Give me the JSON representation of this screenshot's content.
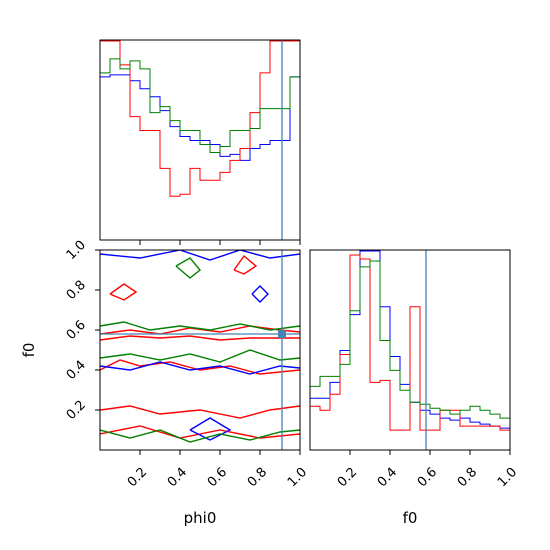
{
  "colors": {
    "series1": "#0000ff",
    "series2": "#ff0000",
    "series3": "#008000",
    "truth": "#4682b4"
  },
  "chart_data": [
    {
      "panel": "phi0-marginal",
      "type": "step-histogram",
      "xlim": [
        0,
        1
      ],
      "ylim": [
        0,
        1
      ],
      "bins": [
        0,
        0.05,
        0.1,
        0.15,
        0.2,
        0.25,
        0.3,
        0.35,
        0.4,
        0.45,
        0.5,
        0.55,
        0.6,
        0.65,
        0.7,
        0.75,
        0.8,
        0.85,
        0.9,
        0.95,
        1.0
      ],
      "series": [
        {
          "color": "#0000ff",
          "values": [
            0.82,
            0.83,
            0.83,
            0.8,
            0.76,
            0.72,
            0.65,
            0.57,
            0.52,
            0.5,
            0.5,
            0.48,
            0.42,
            0.43,
            0.4,
            0.46,
            0.48,
            0.5,
            0.5,
            0.82
          ]
        },
        {
          "color": "#ff0000",
          "values": [
            1.0,
            1.0,
            0.88,
            0.62,
            0.55,
            0.55,
            0.36,
            0.22,
            0.23,
            0.36,
            0.3,
            0.3,
            0.34,
            0.4,
            0.46,
            0.64,
            0.84,
            1.0,
            1.0,
            1.0
          ]
        },
        {
          "color": "#008000",
          "values": [
            0.84,
            0.91,
            0.86,
            0.9,
            0.86,
            0.64,
            0.67,
            0.6,
            0.55,
            0.55,
            0.48,
            0.44,
            0.47,
            0.55,
            0.55,
            0.56,
            0.66,
            0.66,
            0.66,
            0.82
          ]
        }
      ],
      "truth_x": 0.91
    },
    {
      "panel": "phi0-f0-contour",
      "type": "contour",
      "xlabel": "phi0",
      "ylabel": "f0",
      "xlim": [
        0,
        1
      ],
      "ylim": [
        0,
        1
      ],
      "xticks": [
        "0.2",
        "0.4",
        "0.6",
        "0.8",
        "1.0"
      ],
      "yticks": [
        "0.2",
        "0.4",
        "0.6",
        "0.8",
        "1.0"
      ],
      "truth_x": 0.91,
      "truth_y": 0.58,
      "contours": [
        {
          "color": "#ff0000",
          "points": [
            [
              0.0,
              0.58
            ],
            [
              0.15,
              0.6
            ],
            [
              0.3,
              0.58
            ],
            [
              0.45,
              0.61
            ],
            [
              0.6,
              0.59
            ],
            [
              0.75,
              0.62
            ],
            [
              0.9,
              0.6
            ],
            [
              1.0,
              0.59
            ]
          ]
        },
        {
          "color": "#ff0000",
          "points": [
            [
              0.0,
              0.55
            ],
            [
              0.15,
              0.57
            ],
            [
              0.3,
              0.56
            ],
            [
              0.45,
              0.57
            ],
            [
              0.6,
              0.55
            ],
            [
              0.75,
              0.56
            ],
            [
              0.9,
              0.56
            ],
            [
              1.0,
              0.56
            ]
          ]
        },
        {
          "color": "#ff0000",
          "points": [
            [
              0.0,
              0.4
            ],
            [
              0.1,
              0.45
            ],
            [
              0.2,
              0.42
            ],
            [
              0.35,
              0.44
            ],
            [
              0.5,
              0.4
            ],
            [
              0.65,
              0.42
            ],
            [
              0.8,
              0.38
            ],
            [
              1.0,
              0.4
            ]
          ]
        },
        {
          "color": "#ff0000",
          "points": [
            [
              0.0,
              0.2
            ],
            [
              0.15,
              0.22
            ],
            [
              0.3,
              0.18
            ],
            [
              0.5,
              0.2
            ],
            [
              0.7,
              0.16
            ],
            [
              0.85,
              0.2
            ],
            [
              1.0,
              0.22
            ]
          ]
        },
        {
          "color": "#ff0000",
          "points": [
            [
              0.0,
              0.08
            ],
            [
              0.2,
              0.12
            ],
            [
              0.4,
              0.06
            ],
            [
              0.6,
              0.1
            ],
            [
              0.8,
              0.06
            ],
            [
              1.0,
              0.08
            ]
          ]
        },
        {
          "color": "#ff0000",
          "points": [
            [
              0.05,
              0.78
            ],
            [
              0.12,
              0.83
            ],
            [
              0.18,
              0.79
            ],
            [
              0.12,
              0.75
            ],
            [
              0.05,
              0.78
            ]
          ]
        },
        {
          "color": "#ff0000",
          "points": [
            [
              0.67,
              0.9
            ],
            [
              0.72,
              0.97
            ],
            [
              0.78,
              0.92
            ],
            [
              0.72,
              0.88
            ],
            [
              0.67,
              0.9
            ]
          ]
        },
        {
          "color": "#0000ff",
          "points": [
            [
              0.0,
              0.42
            ],
            [
              0.15,
              0.4
            ],
            [
              0.3,
              0.44
            ],
            [
              0.45,
              0.4
            ],
            [
              0.6,
              0.42
            ],
            [
              0.75,
              0.38
            ],
            [
              0.9,
              0.42
            ],
            [
              1.0,
              0.41
            ]
          ]
        },
        {
          "color": "#0000ff",
          "points": [
            [
              0.0,
              0.98
            ],
            [
              0.2,
              0.96
            ],
            [
              0.4,
              1.0
            ],
            [
              0.55,
              0.95
            ],
            [
              0.7,
              1.0
            ],
            [
              0.85,
              0.96
            ],
            [
              1.0,
              0.98
            ]
          ]
        },
        {
          "color": "#0000ff",
          "points": [
            [
              0.45,
              0.1
            ],
            [
              0.55,
              0.16
            ],
            [
              0.65,
              0.1
            ],
            [
              0.55,
              0.05
            ],
            [
              0.45,
              0.1
            ]
          ]
        },
        {
          "color": "#0000ff",
          "points": [
            [
              0.76,
              0.78
            ],
            [
              0.8,
              0.74
            ],
            [
              0.84,
              0.78
            ],
            [
              0.8,
              0.82
            ],
            [
              0.76,
              0.78
            ]
          ]
        },
        {
          "color": "#008000",
          "points": [
            [
              0.0,
              0.46
            ],
            [
              0.15,
              0.48
            ],
            [
              0.3,
              0.45
            ],
            [
              0.45,
              0.48
            ],
            [
              0.6,
              0.44
            ],
            [
              0.75,
              0.5
            ],
            [
              0.9,
              0.45
            ],
            [
              1.0,
              0.46
            ]
          ]
        },
        {
          "color": "#008000",
          "points": [
            [
              0.0,
              0.62
            ],
            [
              0.12,
              0.64
            ],
            [
              0.25,
              0.6
            ],
            [
              0.4,
              0.62
            ],
            [
              0.55,
              0.6
            ],
            [
              0.7,
              0.63
            ],
            [
              0.85,
              0.6
            ],
            [
              1.0,
              0.62
            ]
          ]
        },
        {
          "color": "#008000",
          "points": [
            [
              0.0,
              0.1
            ],
            [
              0.15,
              0.06
            ],
            [
              0.3,
              0.1
            ],
            [
              0.45,
              0.04
            ],
            [
              0.6,
              0.08
            ],
            [
              0.75,
              0.05
            ],
            [
              0.9,
              0.09
            ],
            [
              1.0,
              0.1
            ]
          ]
        },
        {
          "color": "#008000",
          "points": [
            [
              0.38,
              0.92
            ],
            [
              0.45,
              0.96
            ],
            [
              0.5,
              0.9
            ],
            [
              0.45,
              0.86
            ],
            [
              0.38,
              0.92
            ]
          ]
        }
      ]
    },
    {
      "panel": "f0-marginal",
      "type": "step-histogram",
      "xlabel": "f0",
      "xlim": [
        0,
        1
      ],
      "ylim": [
        0,
        1
      ],
      "xticks": [
        "0.2",
        "0.4",
        "0.6",
        "0.8",
        "1.0"
      ],
      "bins": [
        0,
        0.05,
        0.1,
        0.15,
        0.2,
        0.25,
        0.3,
        0.35,
        0.4,
        0.45,
        0.5,
        0.55,
        0.6,
        0.65,
        0.7,
        0.75,
        0.8,
        0.85,
        0.9,
        0.95,
        1.0
      ],
      "series": [
        {
          "color": "#0000ff",
          "values": [
            0.26,
            0.26,
            0.34,
            0.5,
            0.68,
            1.0,
            1.0,
            0.72,
            0.47,
            0.33,
            0.24,
            0.2,
            0.18,
            0.16,
            0.15,
            0.16,
            0.14,
            0.13,
            0.12,
            0.11
          ]
        },
        {
          "color": "#ff0000",
          "values": [
            0.22,
            0.2,
            0.28,
            0.48,
            0.98,
            0.96,
            0.34,
            0.35,
            0.1,
            0.1,
            0.72,
            0.1,
            0.1,
            0.2,
            0.2,
            0.12,
            0.12,
            0.12,
            0.12,
            0.1
          ]
        },
        {
          "color": "#008000",
          "values": [
            0.32,
            0.37,
            0.37,
            0.43,
            0.7,
            0.92,
            0.95,
            0.55,
            0.4,
            0.3,
            0.24,
            0.23,
            0.21,
            0.2,
            0.18,
            0.2,
            0.22,
            0.2,
            0.18,
            0.16
          ]
        }
      ],
      "truth_x": 0.58
    }
  ]
}
